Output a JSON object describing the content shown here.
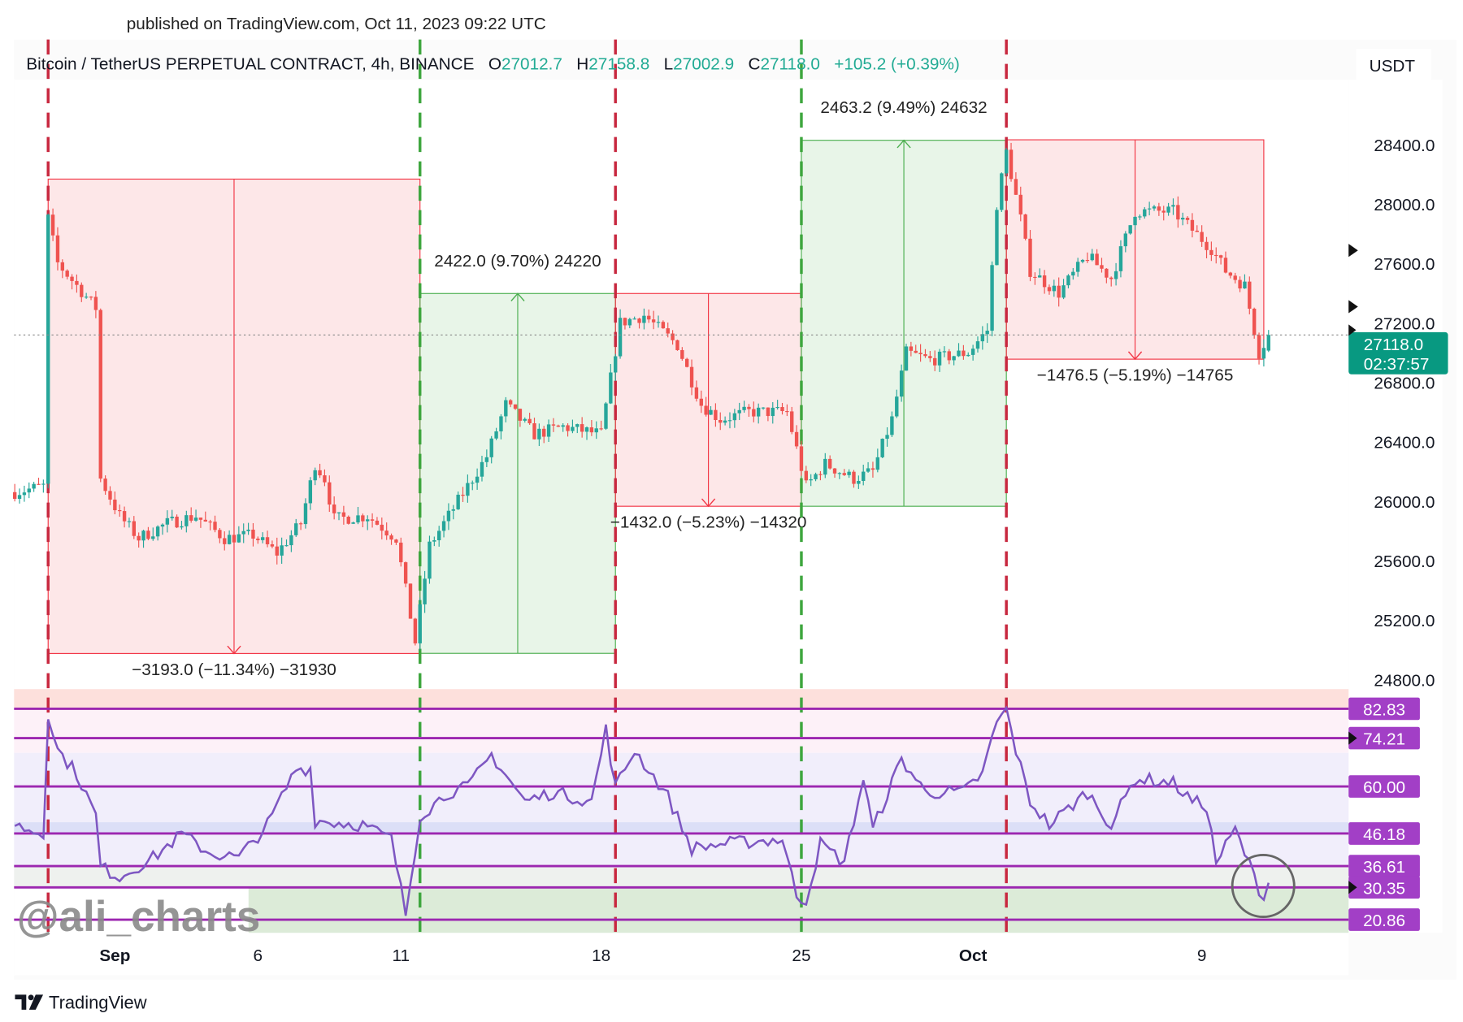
{
  "published": "published on TradingView.com, Oct 11, 2023 09:22 UTC",
  "header": {
    "symbol": "Bitcoin / TetherUS PERPETUAL CONTRACT, 4h, BINANCE",
    "o_label": "O",
    "o_value": "27012.7",
    "h_label": "H",
    "h_value": "27158.8",
    "l_label": "L",
    "l_value": "27002.9",
    "c_label": "C",
    "c_value": "27118.0",
    "change": "+105.2 (+0.39%)"
  },
  "currency": "USDT",
  "current_price": {
    "value": 27118.0,
    "label": "27118.0",
    "countdown": "02:37:57"
  },
  "watermark": "@ali_charts",
  "footer_brand": "TradingView",
  "colors": {
    "up": "#26a69a",
    "down": "#ef5350",
    "rsi_line": "#7e57c2",
    "rsi_level": "#9c27b0",
    "red_line": "#c8283f",
    "green_line": "#3ea63e",
    "price_tag": "#089981"
  },
  "chart_data": [
    {
      "type": "candlestick",
      "interval": "4h",
      "y_ticks": [
        "28400.0",
        "28000.0",
        "27600.0",
        "27200.0",
        "26800.0",
        "26400.0",
        "26000.0",
        "25600.0",
        "25200.0",
        "24800.0"
      ],
      "y_tick_values": [
        28400,
        28000,
        27600,
        27200,
        26800,
        26400,
        26000,
        25600,
        25200,
        24800
      ],
      "ylim": [
        24700,
        28750
      ],
      "x_ticks": [
        {
          "label": "Sep",
          "date": "09-01 00:00",
          "bold": true
        },
        {
          "label": "6",
          "date": "09-06 00:00"
        },
        {
          "label": "11",
          "date": "09-11 00:00"
        },
        {
          "label": "18",
          "date": "09-18 00:00"
        },
        {
          "label": "25",
          "date": "09-25 00:00"
        },
        {
          "label": "Oct",
          "date": "10-01 00:00",
          "bold": true
        },
        {
          "label": "9",
          "date": "10-09 00:00"
        }
      ],
      "xlim": [
        "08-28 12:00",
        "10-14 12:00"
      ],
      "approx_closes": [
        [
          "08-28 12:00",
          26060
        ],
        [
          "08-29 12:00",
          26100
        ],
        [
          "08-29 16:00",
          27900
        ],
        [
          "08-30 00:00",
          27600
        ],
        [
          "08-30 16:00",
          27450
        ],
        [
          "08-31 08:00",
          27300
        ],
        [
          "08-31 12:00",
          26150
        ],
        [
          "09-01 04:00",
          25900
        ],
        [
          "09-01 20:00",
          25750
        ],
        [
          "09-02 20:00",
          25850
        ],
        [
          "09-03 20:00",
          25900
        ],
        [
          "09-04 20:00",
          25750
        ],
        [
          "09-05 20:00",
          25770
        ],
        [
          "09-06 16:00",
          25650
        ],
        [
          "09-07 12:00",
          25850
        ],
        [
          "09-08 00:00",
          26250
        ],
        [
          "09-08 08:00",
          26150
        ],
        [
          "09-08 16:00",
          25880
        ],
        [
          "09-09 20:00",
          25900
        ],
        [
          "09-10 20:00",
          25750
        ],
        [
          "09-11 12:00",
          25050
        ],
        [
          "09-12 00:00",
          25700
        ],
        [
          "09-13 00:00",
          26000
        ],
        [
          "09-14 00:00",
          26300
        ],
        [
          "09-14 16:00",
          26650
        ],
        [
          "09-15 16:00",
          26450
        ],
        [
          "09-16 16:00",
          26500
        ],
        [
          "09-18 00:00",
          26450
        ],
        [
          "09-18 16:00",
          27200
        ],
        [
          "09-19 12:00",
          27250
        ],
        [
          "09-20 16:00",
          27050
        ],
        [
          "09-21 12:00",
          26650
        ],
        [
          "09-22 04:00",
          26550
        ],
        [
          "09-23 04:00",
          26600
        ],
        [
          "09-24 12:00",
          26600
        ],
        [
          "09-25 04:00",
          26100
        ],
        [
          "09-25 20:00",
          26250
        ],
        [
          "09-26 20:00",
          26150
        ],
        [
          "09-27 12:00",
          26200
        ],
        [
          "09-28 04:00",
          26550
        ],
        [
          "09-28 16:00",
          27000
        ],
        [
          "09-29 12:00",
          26950
        ],
        [
          "09-30 20:00",
          27000
        ],
        [
          "10-01 12:00",
          27150
        ],
        [
          "10-01 20:00",
          28000
        ],
        [
          "10-02 04:00",
          28350
        ],
        [
          "10-02 16:00",
          27900
        ],
        [
          "10-03 00:00",
          27550
        ],
        [
          "10-04 00:00",
          27400
        ],
        [
          "10-05 00:00",
          27650
        ],
        [
          "10-05 20:00",
          27500
        ],
        [
          "10-06 16:00",
          27950
        ],
        [
          "10-08 00:00",
          27950
        ],
        [
          "10-09 08:00",
          27700
        ],
        [
          "10-09 20:00",
          27550
        ],
        [
          "10-10 12:00",
          27450
        ],
        [
          "10-11 00:00",
          27000
        ],
        [
          "10-11 08:00",
          27118
        ]
      ],
      "vertical_lines": [
        {
          "date": "08-29 16:00",
          "color": "red"
        },
        {
          "date": "09-11 16:00",
          "color": "green"
        },
        {
          "date": "09-18 12:00",
          "color": "red"
        },
        {
          "date": "09-25 00:00",
          "color": "green"
        },
        {
          "date": "10-02 04:00",
          "color": "red"
        }
      ],
      "measurements": [
        {
          "from_date": "08-29 16:00",
          "to_date": "09-11 16:00",
          "start_price": 28167,
          "end_price": 24974,
          "label": "−3193.0 (−11.34%) −31930",
          "direction": "down"
        },
        {
          "from_date": "09-11 16:00",
          "to_date": "09-18 12:00",
          "start_price": 24975,
          "end_price": 27397,
          "label": "2422.0 (9.70%) 24220",
          "direction": "up"
        },
        {
          "from_date": "09-18 12:00",
          "to_date": "09-25 00:00",
          "start_price": 27397,
          "end_price": 25965,
          "label": "−1432.0 (−5.23%) −14320",
          "direction": "down"
        },
        {
          "from_date": "09-25 00:00",
          "to_date": "10-02 04:00",
          "start_price": 25965,
          "end_price": 28428.2,
          "label": "2463.2 (9.49%) 24632",
          "direction": "up"
        },
        {
          "from_date": "10-02 04:00",
          "to_date": "10-11 04:00",
          "start_price": 28431.5,
          "end_price": 26955,
          "label": "−1476.5 (−5.19%) −14765",
          "direction": "down"
        }
      ]
    },
    {
      "type": "line",
      "indicator": "RSI",
      "ylim": [
        15,
        89
      ],
      "levels": [
        {
          "label": "82.83",
          "value": 82.83,
          "arrow": false
        },
        {
          "label": "74.21",
          "value": 74.21,
          "arrow": true
        },
        {
          "label": "60.00",
          "value": 60.0,
          "arrow": false
        },
        {
          "label": "46.18",
          "value": 46.18,
          "arrow": false
        },
        {
          "label": "36.61",
          "value": 36.61,
          "arrow": false
        },
        {
          "label": "30.35",
          "value": 30.35,
          "arrow": true
        },
        {
          "label": "20.86",
          "value": 20.86,
          "arrow": false
        }
      ],
      "approx_values": [
        [
          "08-28 12:00",
          48.7
        ],
        [
          "08-29 12:00",
          46
        ],
        [
          "08-29 16:00",
          81.7
        ],
        [
          "08-30 00:00",
          70.7
        ],
        [
          "08-30 16:00",
          63.8
        ],
        [
          "08-31 08:00",
          51.4
        ],
        [
          "08-31 12:00",
          36.3
        ],
        [
          "09-01 04:00",
          33.5
        ],
        [
          "09-02 08:00",
          39
        ],
        [
          "09-03 08:00",
          46
        ],
        [
          "09-04 08:00",
          40.4
        ],
        [
          "09-05 08:00",
          39
        ],
        [
          "09-06 08:00",
          48.7
        ],
        [
          "09-07 08:00",
          65.2
        ],
        [
          "09-07 20:00",
          65.2
        ],
        [
          "09-08 00:00",
          50
        ],
        [
          "09-09 16:00",
          48.7
        ],
        [
          "09-10 16:00",
          44.5
        ],
        [
          "09-11 04:00",
          22.5
        ],
        [
          "09-11 16:00",
          51.4
        ],
        [
          "09-12 16:00",
          58.3
        ],
        [
          "09-13 08:00",
          59.7
        ],
        [
          "09-14 04:00",
          69.3
        ],
        [
          "09-15 08:00",
          55.6
        ],
        [
          "09-16 08:00",
          58.3
        ],
        [
          "09-17 16:00",
          55.6
        ],
        [
          "09-18 04:00",
          76.8
        ],
        [
          "09-18 12:00",
          59.7
        ],
        [
          "09-19 04:00",
          70.7
        ],
        [
          "09-20 08:00",
          57
        ],
        [
          "09-21 04:00",
          41.8
        ],
        [
          "09-22 08:00",
          43.2
        ],
        [
          "09-24 08:00",
          44.5
        ],
        [
          "09-24 20:00",
          28
        ],
        [
          "09-25 04:00",
          26.6
        ],
        [
          "09-25 16:00",
          43.2
        ],
        [
          "09-26 12:00",
          37.7
        ],
        [
          "09-27 04:00",
          62.4
        ],
        [
          "09-27 12:00",
          47.3
        ],
        [
          "09-28 12:00",
          68
        ],
        [
          "09-29 08:00",
          58.3
        ],
        [
          "09-30 16:00",
          58.3
        ],
        [
          "10-01 08:00",
          63.8
        ],
        [
          "10-01 20:00",
          79
        ],
        [
          "10-02 04:00",
          82.3
        ],
        [
          "10-02 12:00",
          70.7
        ],
        [
          "10-03 00:00",
          55.6
        ],
        [
          "10-03 16:00",
          48.7
        ],
        [
          "10-05 00:00",
          58.3
        ],
        [
          "10-05 20:00",
          48.7
        ],
        [
          "10-06 16:00",
          62.4
        ],
        [
          "10-08 00:00",
          61
        ],
        [
          "10-08 16:00",
          55.6
        ],
        [
          "10-09 04:00",
          54.3
        ],
        [
          "10-09 12:00",
          37.7
        ],
        [
          "10-10 04:00",
          47.3
        ],
        [
          "10-10 20:00",
          33.5
        ],
        [
          "10-11 04:00",
          26.6
        ],
        [
          "10-11 08:00",
          33.5
        ]
      ]
    }
  ]
}
